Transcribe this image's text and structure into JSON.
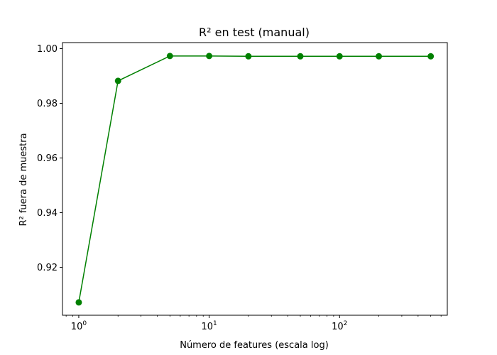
{
  "chart_data": {
    "type": "line",
    "title": "R² en test (manual)",
    "xlabel": "Número de features (escala log)",
    "ylabel": "R² fuera de muestra",
    "x_scale": "log",
    "xlim": [
      0.75,
      670
    ],
    "ylim": [
      0.9025,
      1.0022
    ],
    "x_ticks": [
      {
        "value": 1,
        "base": "10",
        "exp": "0"
      },
      {
        "value": 10,
        "base": "10",
        "exp": "1"
      },
      {
        "value": 100,
        "base": "10",
        "exp": "2"
      }
    ],
    "y_ticks": [
      {
        "value": 0.92,
        "label": "0.92"
      },
      {
        "value": 0.94,
        "label": "0.94"
      },
      {
        "value": 0.96,
        "label": "0.96"
      },
      {
        "value": 0.98,
        "label": "0.98"
      },
      {
        "value": 1.0,
        "label": "1.00"
      }
    ],
    "grid": false,
    "series": [
      {
        "color": "#008000",
        "marker": "circle",
        "x": [
          1,
          2,
          5,
          10,
          20,
          50,
          100,
          200,
          500
        ],
        "values": [
          0.9072,
          0.9882,
          0.9973,
          0.9973,
          0.9972,
          0.9972,
          0.9972,
          0.9972,
          0.9972
        ]
      }
    ]
  }
}
